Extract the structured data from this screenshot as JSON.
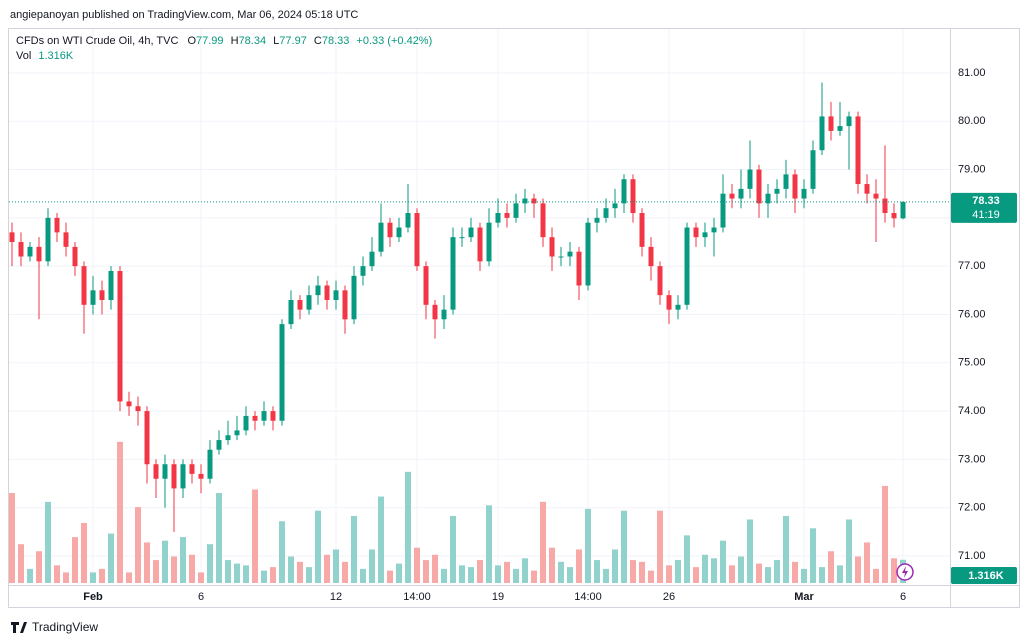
{
  "header": {
    "publisher": "angiepanoyan published on TradingView.com, Mar 06, 2024 05:18 UTC"
  },
  "footer": {
    "brand": "TradingView"
  },
  "chart_data": {
    "type": "candlestick",
    "title": "CFDs on WTI Crude Oil, 4h, TVC",
    "legend_keys": [
      "O",
      "H",
      "L",
      "C"
    ],
    "change": "+0.33 (+0.42%)",
    "volume_title": "Vol",
    "volume_last_label": "1.316K",
    "countdown": "41:19",
    "up_color": "#089981",
    "down_color": "#f23645",
    "volume_up_color": "#92d2cc",
    "volume_down_color": "#f7a9a7",
    "grid": true,
    "categories": [
      null,
      null,
      null,
      null,
      null,
      null,
      null,
      null,
      null,
      "Feb",
      null,
      null,
      null,
      null,
      null,
      null,
      null,
      null,
      null,
      null,
      null,
      "6",
      null,
      null,
      null,
      null,
      null,
      null,
      null,
      null,
      null,
      null,
      null,
      null,
      null,
      null,
      "12",
      null,
      null,
      null,
      null,
      null,
      null,
      null,
      null,
      "14:00",
      null,
      null,
      null,
      null,
      null,
      null,
      null,
      null,
      "19",
      null,
      null,
      null,
      null,
      null,
      null,
      null,
      null,
      null,
      "14:00",
      null,
      null,
      null,
      null,
      null,
      null,
      null,
      null,
      "26",
      null,
      null,
      null,
      null,
      null,
      null,
      null,
      null,
      null,
      null,
      null,
      null,
      null,
      null,
      "Mar",
      null,
      null,
      null,
      null,
      null,
      null,
      null,
      null,
      null,
      null,
      "6"
    ],
    "open": [
      77.7,
      77.5,
      77.2,
      77.4,
      77.1,
      78.0,
      77.7,
      77.4,
      77.0,
      76.2,
      76.5,
      76.3,
      76.9,
      74.2,
      74.1,
      74.0,
      72.9,
      72.6,
      72.9,
      72.4,
      72.9,
      72.7,
      72.6,
      73.2,
      73.4,
      73.5,
      73.6,
      73.9,
      73.8,
      74.0,
      73.8,
      75.8,
      76.3,
      76.1,
      76.4,
      76.6,
      76.3,
      76.5,
      75.9,
      76.8,
      77.0,
      77.3,
      77.9,
      77.6,
      77.8,
      78.1,
      77.0,
      76.2,
      75.9,
      76.1,
      77.6,
      77.6,
      77.8,
      77.1,
      77.9,
      78.1,
      78.0,
      78.3,
      78.4,
      78.3,
      77.6,
      77.2,
      77.2,
      77.3,
      76.6,
      77.9,
      78.0,
      78.2,
      78.3,
      78.8,
      78.1,
      77.4,
      77.0,
      76.4,
      76.1,
      76.2,
      77.8,
      77.6,
      77.7,
      77.8,
      78.5,
      78.4,
      78.6,
      79.0,
      78.3,
      78.5,
      78.6,
      78.9,
      78.4,
      78.6,
      79.4,
      80.1,
      79.8,
      79.9,
      80.1,
      78.7,
      78.5,
      78.4,
      78.1,
      77.99
    ],
    "high": [
      77.9,
      77.7,
      77.5,
      77.6,
      78.2,
      78.1,
      77.9,
      77.5,
      77.1,
      76.8,
      76.7,
      77.0,
      77.0,
      74.4,
      74.3,
      74.1,
      73.0,
      73.1,
      73.0,
      73.0,
      73.0,
      72.9,
      73.4,
      73.6,
      73.8,
      73.9,
      74.1,
      74.0,
      74.2,
      74.1,
      75.9,
      76.5,
      76.4,
      76.6,
      76.8,
      76.7,
      76.7,
      76.6,
      77.0,
      77.2,
      77.6,
      78.3,
      78.0,
      78.0,
      78.7,
      78.2,
      77.1,
      76.3,
      76.4,
      77.8,
      77.8,
      78.0,
      77.9,
      78.2,
      78.4,
      78.3,
      78.5,
      78.6,
      78.5,
      78.4,
      77.8,
      77.4,
      77.5,
      77.4,
      78.0,
      78.2,
      78.4,
      78.6,
      78.9,
      78.9,
      78.2,
      77.6,
      77.1,
      76.5,
      76.4,
      77.9,
      77.9,
      77.9,
      78.0,
      78.9,
      78.7,
      79.0,
      79.6,
      79.1,
      78.7,
      78.8,
      79.2,
      79.0,
      78.8,
      79.6,
      80.8,
      80.4,
      80.4,
      80.2,
      80.2,
      78.9,
      78.8,
      79.5,
      78.3,
      78.34
    ],
    "low": [
      77.0,
      77.0,
      77.1,
      75.9,
      77.0,
      77.5,
      77.2,
      76.8,
      75.6,
      76.0,
      76.0,
      76.1,
      74.0,
      73.9,
      73.7,
      72.5,
      72.2,
      72.0,
      71.5,
      72.2,
      72.5,
      72.3,
      72.5,
      73.1,
      73.3,
      73.4,
      73.5,
      73.6,
      73.7,
      73.6,
      73.7,
      75.7,
      75.9,
      76.0,
      76.2,
      76.1,
      76.1,
      75.6,
      75.8,
      76.6,
      76.9,
      77.2,
      77.4,
      77.5,
      77.7,
      76.9,
      75.9,
      75.5,
      75.7,
      76.0,
      77.4,
      77.5,
      76.9,
      77.0,
      77.8,
      77.8,
      77.9,
      78.1,
      78.0,
      77.4,
      76.9,
      77.0,
      77.0,
      76.3,
      76.5,
      77.7,
      77.9,
      78.0,
      78.1,
      77.9,
      77.2,
      76.7,
      76.2,
      75.8,
      75.9,
      76.1,
      77.4,
      77.4,
      77.2,
      77.7,
      78.2,
      78.2,
      78.4,
      78.0,
      78.0,
      78.3,
      78.4,
      78.1,
      78.2,
      78.5,
      79.3,
      79.6,
      79.7,
      79.0,
      78.5,
      78.3,
      77.5,
      77.9,
      77.8,
      77.97
    ],
    "close": [
      77.5,
      77.2,
      77.4,
      77.1,
      78.0,
      77.7,
      77.4,
      77.0,
      76.2,
      76.5,
      76.3,
      76.9,
      74.2,
      74.1,
      74.0,
      72.9,
      72.6,
      72.9,
      72.4,
      72.9,
      72.7,
      72.6,
      73.2,
      73.4,
      73.5,
      73.6,
      73.9,
      73.8,
      74.0,
      73.8,
      75.8,
      76.3,
      76.1,
      76.4,
      76.6,
      76.3,
      76.5,
      75.9,
      76.8,
      77.0,
      77.3,
      77.9,
      77.6,
      77.8,
      78.1,
      77.0,
      76.2,
      75.9,
      76.1,
      77.6,
      77.6,
      77.8,
      77.1,
      77.9,
      78.1,
      78.0,
      78.3,
      78.4,
      78.3,
      77.6,
      77.2,
      77.2,
      77.3,
      76.6,
      77.9,
      78.0,
      78.2,
      78.3,
      78.8,
      78.1,
      77.4,
      77.0,
      76.4,
      76.1,
      76.2,
      77.8,
      77.6,
      77.7,
      77.8,
      78.5,
      78.4,
      78.6,
      79.0,
      78.3,
      78.5,
      78.6,
      78.9,
      78.4,
      78.6,
      79.4,
      80.1,
      79.8,
      79.9,
      80.1,
      78.7,
      78.5,
      78.4,
      78.1,
      77.99,
      78.33
    ],
    "volume": [
      5.1,
      2.2,
      0.8,
      1.8,
      4.6,
      1.0,
      0.6,
      2.6,
      3.4,
      0.6,
      0.8,
      2.8,
      8.0,
      0.6,
      4.3,
      2.3,
      1.3,
      2.4,
      1.5,
      2.6,
      1.6,
      0.6,
      2.2,
      5.1,
      1.3,
      1.1,
      1.0,
      5.3,
      0.7,
      0.9,
      3.5,
      1.5,
      1.2,
      0.9,
      4.1,
      1.6,
      1.9,
      1.2,
      3.8,
      0.8,
      1.9,
      4.9,
      0.7,
      1.1,
      6.3,
      2.0,
      1.3,
      1.6,
      0.8,
      3.8,
      1.0,
      0.9,
      1.3,
      4.4,
      1.0,
      1.2,
      0.8,
      1.4,
      0.7,
      4.6,
      2.0,
      1.2,
      0.9,
      1.9,
      4.2,
      1.3,
      0.8,
      1.9,
      4.1,
      1.3,
      1.2,
      0.7,
      4.1,
      1.0,
      1.3,
      2.7,
      0.9,
      1.6,
      1.4,
      2.4,
      1.0,
      1.5,
      3.6,
      1.1,
      0.9,
      1.3,
      3.8,
      1.2,
      0.8,
      3.1,
      0.9,
      1.8,
      1.0,
      3.6,
      1.5,
      2.3,
      0.8,
      5.5,
      1.4,
      1.316
    ],
    "ylim": [
      70.4,
      81.93
    ],
    "yticks": [
      {
        "value": 71,
        "label": "71.00"
      },
      {
        "value": 72,
        "label": "72.00"
      },
      {
        "value": 73,
        "label": "73.00"
      },
      {
        "value": 74,
        "label": "74.00"
      },
      {
        "value": 75,
        "label": "75.00"
      },
      {
        "value": 76,
        "label": "76.00"
      },
      {
        "value": 77,
        "label": "77.00"
      },
      {
        "value": 78,
        "label": "78.00"
      },
      {
        "value": 79,
        "label": "79.00"
      },
      {
        "value": 80,
        "label": "80.00"
      },
      {
        "value": 81,
        "label": "81.00"
      }
    ],
    "y2lim": [
      0,
      8.5
    ]
  }
}
